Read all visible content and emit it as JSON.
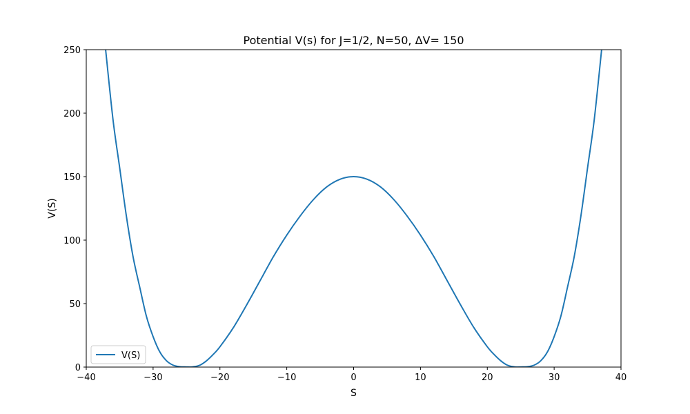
{
  "chart_data": {
    "type": "line",
    "title": "Potential V(s) for J=1/2, N=50, ΔV= 150",
    "xlabel": "S",
    "ylabel": "V(S)",
    "xlim": [
      -40,
      40
    ],
    "ylim": [
      0,
      250
    ],
    "xticks": [
      -40,
      -30,
      -20,
      -10,
      0,
      10,
      20,
      30,
      40
    ],
    "xtick_labels": [
      "−40",
      "−30",
      "−20",
      "−10",
      "0",
      "10",
      "20",
      "30",
      "40"
    ],
    "yticks": [
      0,
      50,
      100,
      150,
      200,
      250
    ],
    "ytick_labels": [
      "0",
      "50",
      "100",
      "150",
      "200",
      "250"
    ],
    "grid": false,
    "legend_position": "lower-left",
    "series": [
      {
        "name": "V(S)",
        "color": "#1f77b4",
        "x": [
          -37.1,
          -36,
          -35,
          -34,
          -33,
          -32,
          -31,
          -30,
          -29,
          -28,
          -27,
          -26,
          -25,
          -24.5,
          -24,
          -23,
          -22,
          -21,
          -20,
          -18,
          -16,
          -14,
          -12,
          -10,
          -8,
          -6,
          -4,
          -2,
          0,
          2,
          4,
          6,
          8,
          10,
          12,
          14,
          16,
          18,
          20,
          21,
          22,
          23,
          24,
          24.5,
          25,
          26,
          27,
          28,
          29,
          30,
          31,
          32,
          33,
          34,
          35,
          36,
          37.1
        ],
        "y": [
          250,
          195,
          157,
          119,
          87,
          63,
          40,
          24,
          12,
          5,
          1.5,
          0.3,
          0.1,
          0,
          0.2,
          1.5,
          5,
          10,
          16,
          31,
          49,
          68,
          87,
          104,
          119,
          132,
          142,
          148,
          150,
          148,
          142,
          132,
          119,
          104,
          87,
          68,
          49,
          31,
          16,
          10,
          5,
          1.5,
          0.2,
          0,
          0.1,
          0.3,
          1.5,
          5,
          12,
          24,
          40,
          63,
          87,
          119,
          157,
          195,
          250
        ]
      }
    ]
  }
}
